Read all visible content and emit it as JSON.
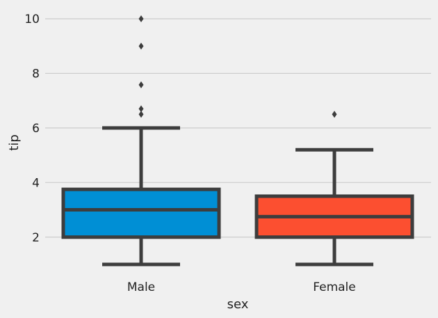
{
  "chart_data": {
    "type": "box",
    "title": "",
    "xlabel": "sex",
    "ylabel": "tip",
    "ylim": [
      0.8,
      10.5
    ],
    "yticks": [
      2,
      4,
      6,
      8,
      10
    ],
    "grid": true,
    "categories": [
      "Male",
      "Female"
    ],
    "boxes": [
      {
        "category": "Male",
        "color": "#008fd5",
        "whisker_low": 1.0,
        "q1": 2.0,
        "median": 3.0,
        "q3": 3.75,
        "whisker_high": 6.0,
        "outliers": [
          6.5,
          6.7,
          7.58,
          9.0,
          10.0
        ]
      },
      {
        "category": "Female",
        "color": "#fc4f30",
        "whisker_low": 1.0,
        "q1": 2.0,
        "median": 2.75,
        "q3": 3.5,
        "whisker_high": 5.2,
        "outliers": [
          6.5
        ]
      }
    ]
  }
}
